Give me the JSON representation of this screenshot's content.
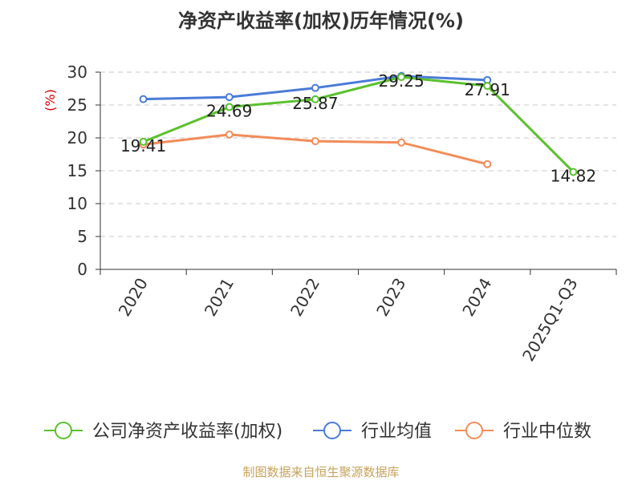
{
  "title": "净资产收益率(加权)历年情况(%)",
  "source_text": "制图数据来自恒生聚源数据库",
  "chart_data": {
    "type": "line",
    "categories": [
      "2020",
      "2021",
      "2022",
      "2023",
      "2024",
      "2025Q1-Q3"
    ],
    "ylabel": "(%)",
    "ylim": [
      0,
      30
    ],
    "yticks": [
      0,
      5,
      10,
      15,
      20,
      25,
      30
    ],
    "grid": true,
    "legend_position": "bottom",
    "series": [
      {
        "name": "公司净资产收益率(加权)",
        "color": "#5ac02e",
        "values": [
          19.41,
          24.69,
          25.87,
          29.25,
          27.91,
          14.82
        ],
        "labels": [
          "19.41",
          "24.69",
          "25.87",
          "29.25",
          "27.91",
          "14.82"
        ]
      },
      {
        "name": "行业均值",
        "color": "#4a7bd8",
        "values": [
          25.9,
          26.2,
          27.6,
          29.4,
          28.8,
          null
        ]
      },
      {
        "name": "行业中位数",
        "color": "#f28c5a",
        "values": [
          19.0,
          20.5,
          19.5,
          19.3,
          16.0,
          null
        ]
      }
    ]
  }
}
